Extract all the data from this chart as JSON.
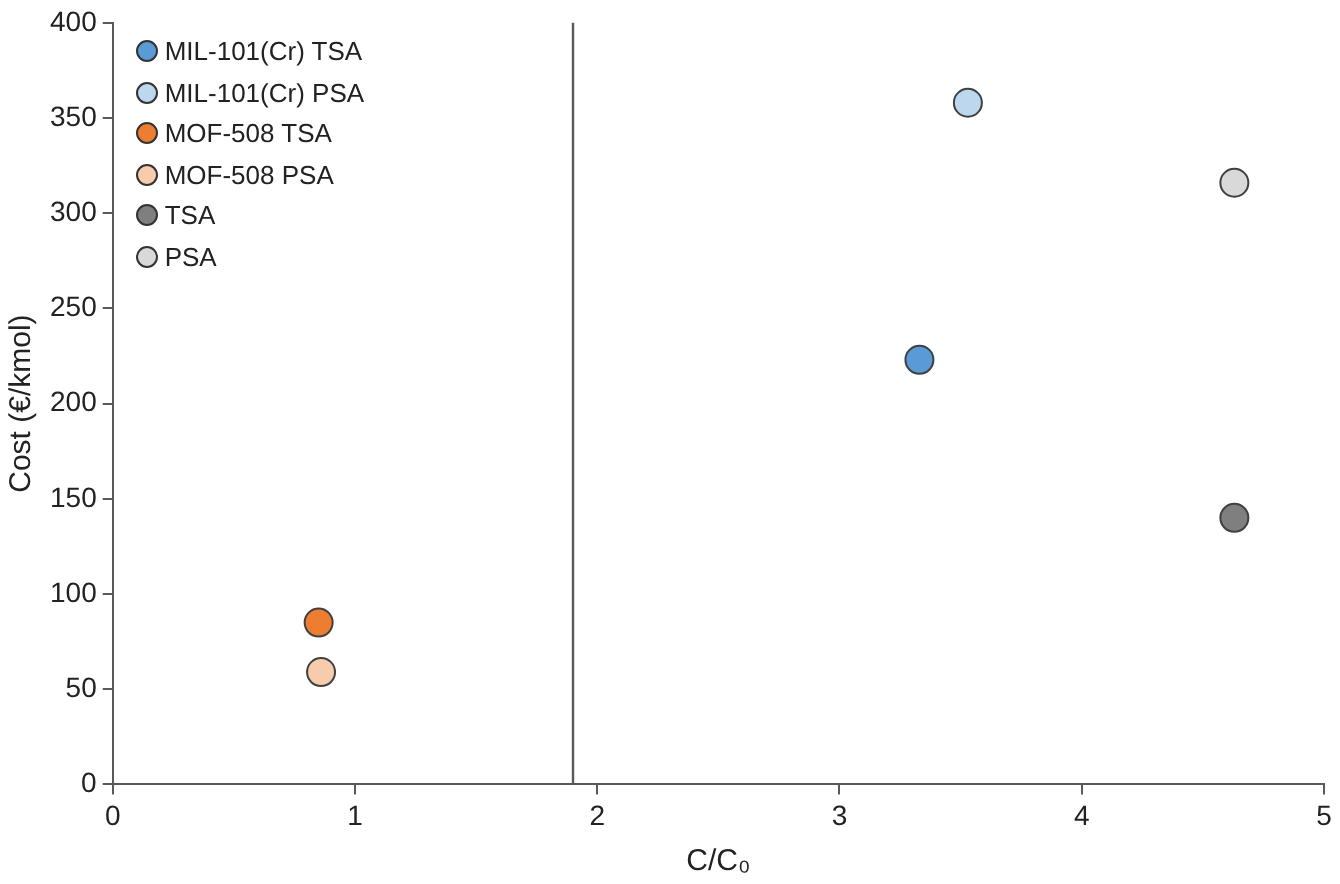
{
  "chart_data": {
    "type": "scatter",
    "xlabel": "C/C₀",
    "ylabel": "Cost (€/kmol)",
    "xlim": [
      0,
      5
    ],
    "xticks": [
      0,
      1,
      2,
      3,
      4,
      5
    ],
    "ylim": [
      0,
      400
    ],
    "yticks": [
      0,
      50,
      100,
      150,
      200,
      250,
      300,
      350,
      400
    ],
    "grid": false,
    "legend": "top left",
    "marker": "circle",
    "ref_lines": [
      {
        "axis": "x",
        "value": 1.9,
        "color": "#595959"
      }
    ],
    "series": [
      {
        "name": "MIL-101(Cr) TSA",
        "color": "#5b9bd5",
        "x": [
          3.33
        ],
        "values": [
          223
        ]
      },
      {
        "name": "MIL-101(Cr) PSA",
        "color": "#bdd7ee",
        "x": [
          3.53
        ],
        "values": [
          358
        ]
      },
      {
        "name": "MOF-508 TSA",
        "color": "#ed7d31",
        "x": [
          0.85
        ],
        "values": [
          85
        ]
      },
      {
        "name": "MOF-508 PSA",
        "color": "#f8cbad",
        "x": [
          0.86
        ],
        "values": [
          59
        ]
      },
      {
        "name": "TSA",
        "color": "#7f7f7f",
        "x": [
          4.63
        ],
        "values": [
          140
        ]
      },
      {
        "name": "PSA",
        "color": "#d9d9d9",
        "x": [
          4.63
        ],
        "values": [
          316
        ]
      }
    ]
  }
}
